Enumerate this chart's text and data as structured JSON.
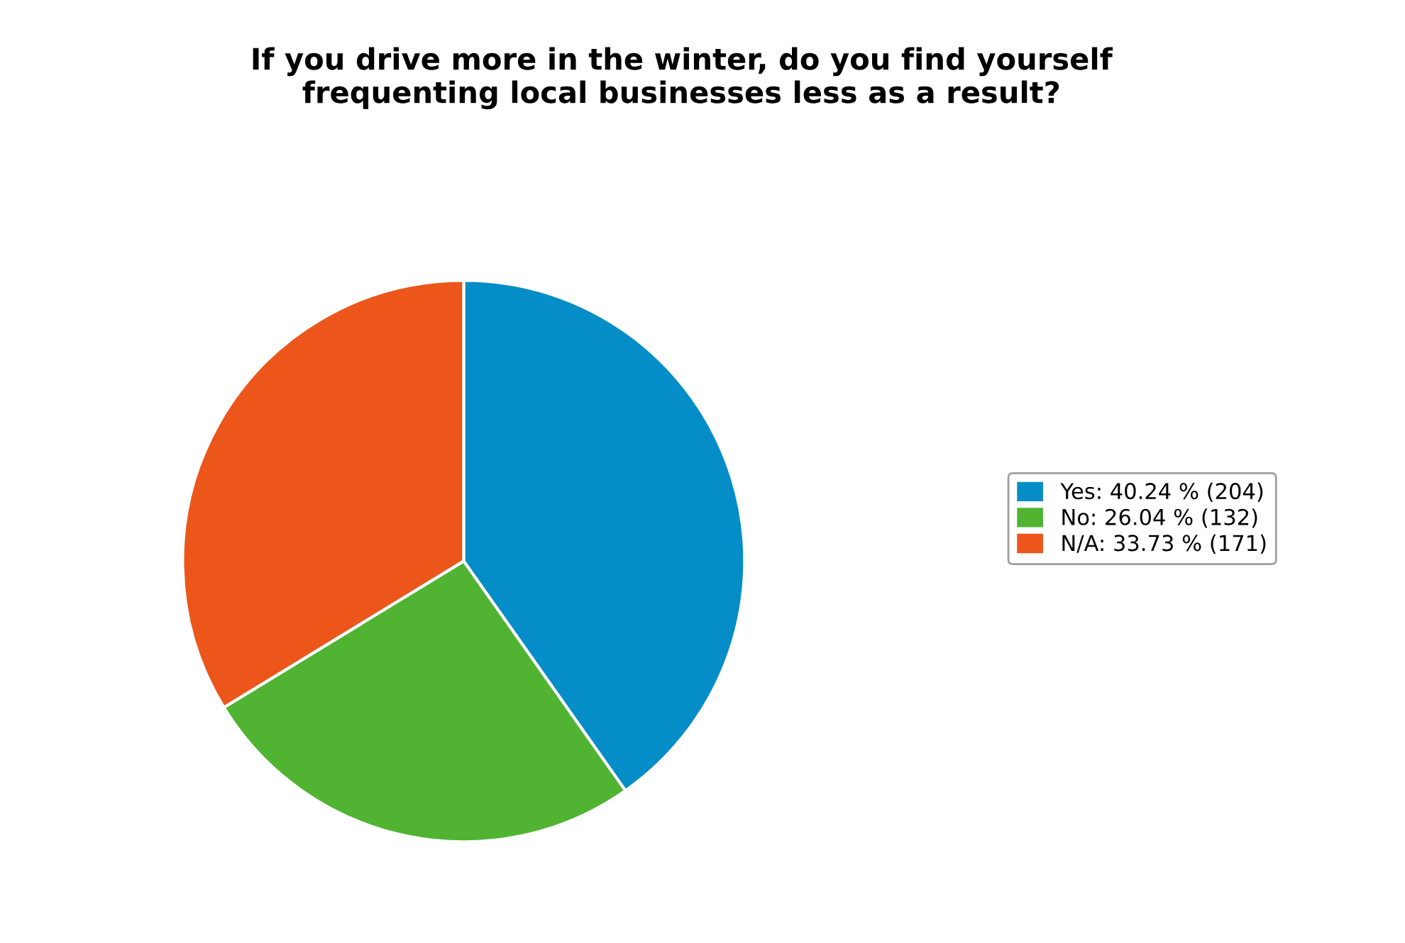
{
  "chart_data": {
    "type": "pie",
    "title": "If you drive more in the winter, do you find yourself\nfrequenting local businesses less as a result?",
    "categories": [
      "Yes",
      "No",
      "N/A"
    ],
    "values": [
      204,
      132,
      171
    ],
    "value_labels": [
      "40.24 % (204)",
      "26.04 % (132)",
      "33.73 % (171)"
    ],
    "colors": [
      "#058dc7",
      "#50b432",
      "#ed561b"
    ],
    "legend": "right"
  }
}
